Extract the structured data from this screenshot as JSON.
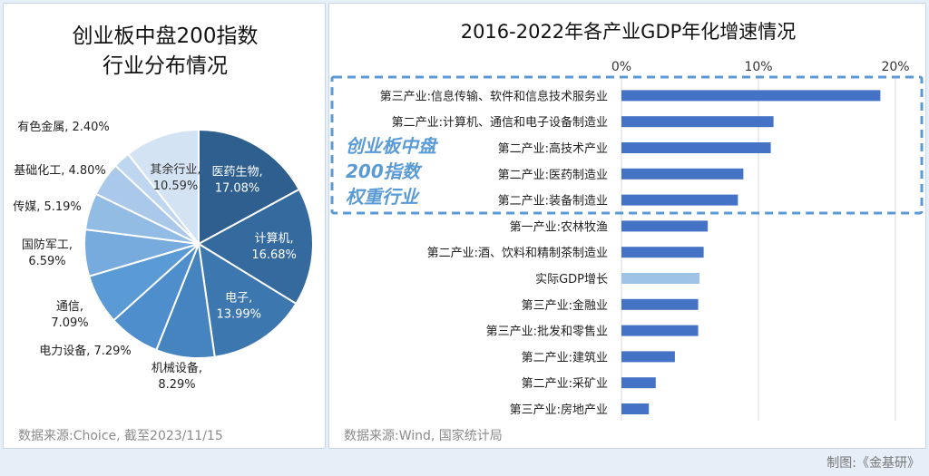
{
  "credit": "制图:《金基研》",
  "colors": {
    "dark": "#2f5f8f",
    "bar": "#4472c4",
    "bar_highlight": "#9dc3e6",
    "callout": "#5b9bd5"
  },
  "left": {
    "title_line1": "创业板中盘200指数",
    "title_line2": "行业分布情况",
    "source": "数据来源:Choice, 截至2023/11/15"
  },
  "right": {
    "title": "2016-2022年各产业GDP年化增速情况",
    "source": "数据来源:Wind, 国家统计局",
    "callout": [
      "创业板中盘",
      "200指数",
      "权重行业"
    ]
  },
  "chart_data": [
    {
      "type": "pie",
      "title": "创业板中盘200指数行业分布情况",
      "slices": [
        {
          "name": "医药生物",
          "label": "17.08%",
          "value": 17.08,
          "color": "#2f5f8f"
        },
        {
          "name": "计算机",
          "label": "16.68%",
          "value": 16.68,
          "color": "#346a9e"
        },
        {
          "name": "电子",
          "label": "13.99%",
          "value": 13.99,
          "color": "#3d77b0"
        },
        {
          "name": "机械设备",
          "label": "8.29%",
          "value": 8.29,
          "color": "#4684c0"
        },
        {
          "name": "电力设备",
          "label": "7.29%",
          "value": 7.29,
          "color": "#4f8ecc"
        },
        {
          "name": "通信",
          "label": "7.09%",
          "value": 7.09,
          "color": "#5b9bd5"
        },
        {
          "name": "国防军工",
          "label": "6.59%",
          "value": 6.59,
          "color": "#78abdd"
        },
        {
          "name": "传媒",
          "label": "5.19%",
          "value": 5.19,
          "color": "#93bce5"
        },
        {
          "name": "基础化工",
          "label": "4.80%",
          "value": 4.8,
          "color": "#aac9ea"
        },
        {
          "name": "有色金属",
          "label": "2.40%",
          "value": 2.4,
          "color": "#bed6ef"
        },
        {
          "name": "其余行业",
          "label": "10.59%",
          "value": 10.59,
          "color": "#d4e3f3"
        }
      ]
    },
    {
      "type": "bar",
      "orientation": "horizontal",
      "title": "2016-2022年各产业GDP年化增速情况",
      "categories": [
        "第三产业:信息传输、软件和信息技术服务业",
        "第二产业:计算机、通信和电子设备制造业",
        "第二产业:高技术产业",
        "第二产业:医药制造业",
        "第二产业:装备制造业",
        "第一产业:农林牧渔",
        "第二产业:酒、饮料和精制茶制造业",
        "实际GDP增长",
        "第三产业:金融业",
        "第三产业:批发和零售业",
        "第二产业:建筑业",
        "第二产业:采矿业",
        "第三产业:房地产业"
      ],
      "values": [
        18.9,
        11.1,
        10.9,
        8.9,
        8.5,
        6.3,
        6.0,
        5.7,
        5.6,
        5.6,
        3.9,
        2.5,
        2.0
      ],
      "highlight_index": 7,
      "xlim": [
        0,
        20
      ],
      "xticks": [
        "0%",
        "10%",
        "20%"
      ],
      "grid": true
    }
  ]
}
